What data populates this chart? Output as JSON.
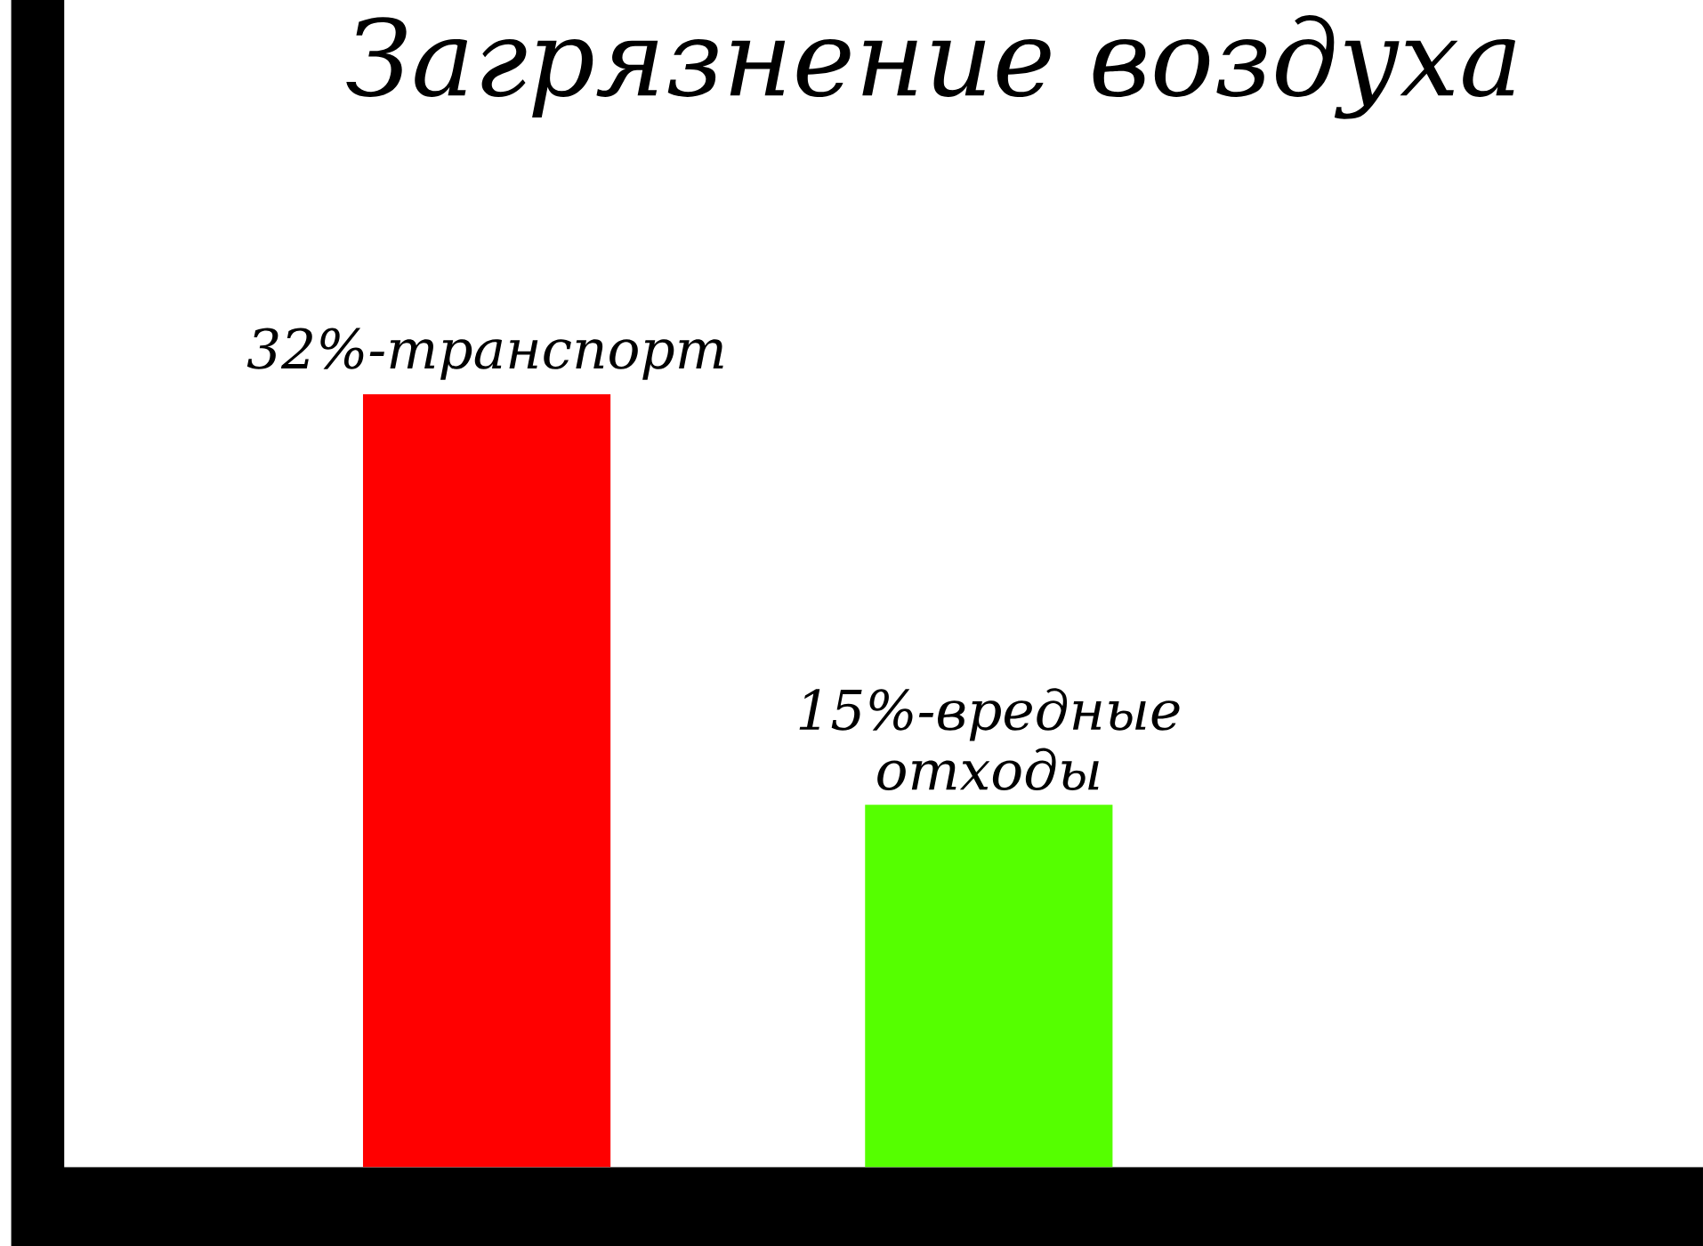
{
  "chart_data": {
    "type": "bar",
    "title": "Загрязнение воздуха",
    "categories": [
      null,
      null
    ],
    "values": [
      32,
      15
    ],
    "colors": [
      "#ff0000",
      "#55ff00"
    ],
    "value_labels": [
      "32%-транспорт",
      "15%-вредные отходы"
    ]
  }
}
